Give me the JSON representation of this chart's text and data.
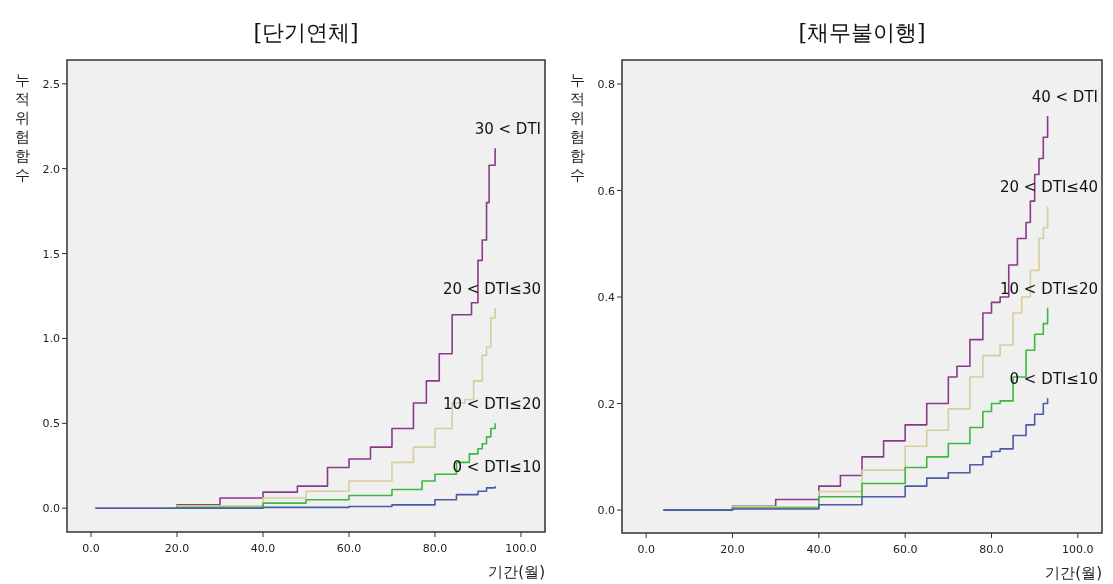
{
  "chart_data": [
    {
      "type": "step",
      "title": "[단기연체]",
      "xlabel": "기간(월)",
      "ylabel": "누적위험함수",
      "xlim": [
        -5.6,
        105.6
      ],
      "ylim": [
        -0.14,
        2.64
      ],
      "xticks": [
        {
          "value": 0,
          "label": "0.0"
        },
        {
          "value": 20,
          "label": "20.0"
        },
        {
          "value": 40,
          "label": "40.0"
        },
        {
          "value": 60,
          "label": "60.0"
        },
        {
          "value": 80,
          "label": "80.0"
        },
        {
          "value": 100,
          "label": "100.0"
        }
      ],
      "yticks": [
        {
          "value": 0,
          "label": "0.0"
        },
        {
          "value": 0.5,
          "label": "0.5"
        },
        {
          "value": 1,
          "label": "1.0"
        },
        {
          "value": 1.5,
          "label": "1.5"
        },
        {
          "value": 2,
          "label": "2.0"
        },
        {
          "value": 2.5,
          "label": "2.5"
        }
      ],
      "series": [
        {
          "name": "30 < DTI",
          "color": "#8a3a8a",
          "x": [
            1,
            20,
            30,
            40,
            48,
            55,
            60,
            65,
            70,
            75,
            78,
            81,
            84,
            87,
            88.5,
            90,
            91,
            92,
            92.6,
            94,
            94
          ],
          "values": [
            0,
            0.02,
            0.06,
            0.095,
            0.13,
            0.24,
            0.29,
            0.36,
            0.47,
            0.62,
            0.75,
            0.91,
            1.14,
            1.14,
            1.21,
            1.46,
            1.58,
            1.8,
            2.02,
            2.02,
            2.12
          ]
        },
        {
          "name": "20 < DTI≤30",
          "color": "#d6cd9c",
          "x": [
            1,
            20,
            40,
            50,
            60,
            70,
            75,
            80,
            84,
            87,
            89,
            91,
            92,
            93,
            94,
            94
          ],
          "values": [
            0,
            0.015,
            0.06,
            0.1,
            0.16,
            0.27,
            0.36,
            0.47,
            0.62,
            0.64,
            0.75,
            0.9,
            0.95,
            1.12,
            1.13,
            1.18
          ]
        },
        {
          "name": "10 < DTI≤20",
          "color": "#3cb83c",
          "x": [
            18,
            20,
            40,
            50,
            60,
            70,
            77,
            80,
            85,
            88,
            90,
            91,
            92,
            93,
            94
          ],
          "values": [
            0,
            0.005,
            0.03,
            0.05,
            0.075,
            0.11,
            0.16,
            0.2,
            0.27,
            0.32,
            0.35,
            0.38,
            0.42,
            0.47,
            0.5
          ]
        },
        {
          "name": "0 < DTI≤10",
          "color": "#4a5aa8",
          "x": [
            1,
            40,
            60,
            70,
            80,
            85,
            88,
            90,
            92,
            94
          ],
          "values": [
            0,
            0.005,
            0.01,
            0.02,
            0.05,
            0.08,
            0.08,
            0.1,
            0.12,
            0.13
          ]
        }
      ]
    },
    {
      "type": "step",
      "title": "[채무불이행]",
      "xlabel": "기간(월)",
      "ylabel": "누적위험함수",
      "xlim": [
        -5.6,
        105.6
      ],
      "ylim": [
        -0.043,
        0.845
      ],
      "xticks": [
        {
          "value": 0,
          "label": "0.0"
        },
        {
          "value": 20,
          "label": "20.0"
        },
        {
          "value": 40,
          "label": "40.0"
        },
        {
          "value": 60,
          "label": "60.0"
        },
        {
          "value": 80,
          "label": "80.0"
        },
        {
          "value": 100,
          "label": "100.0"
        }
      ],
      "yticks": [
        {
          "value": 0,
          "label": "0.0"
        },
        {
          "value": 0.2,
          "label": "0.2"
        },
        {
          "value": 0.4,
          "label": "0.4"
        },
        {
          "value": 0.6,
          "label": "0.6"
        },
        {
          "value": 0.8,
          "label": "0.8"
        }
      ],
      "series": [
        {
          "name": "40 < DTI",
          "color": "#8a3a8a",
          "x": [
            4,
            20,
            30,
            40,
            45,
            50,
            55,
            60,
            65,
            70,
            72,
            75,
            78,
            80,
            82,
            84,
            86,
            88,
            89,
            90,
            91,
            92,
            93
          ],
          "values": [
            0,
            0.007,
            0.02,
            0.045,
            0.065,
            0.1,
            0.13,
            0.16,
            0.2,
            0.25,
            0.27,
            0.32,
            0.37,
            0.39,
            0.4,
            0.46,
            0.51,
            0.54,
            0.58,
            0.63,
            0.66,
            0.7,
            0.74
          ]
        },
        {
          "name": "20 < DTI≤40",
          "color": "#d6cd9c",
          "x": [
            4,
            20,
            40,
            50,
            60,
            65,
            70,
            75,
            78,
            82,
            85,
            87,
            89,
            91,
            92,
            93
          ],
          "values": [
            0,
            0.006,
            0.035,
            0.075,
            0.12,
            0.15,
            0.19,
            0.25,
            0.29,
            0.31,
            0.37,
            0.4,
            0.45,
            0.51,
            0.53,
            0.57
          ]
        },
        {
          "name": "10 < DTI≤20",
          "color": "#3cb83c",
          "x": [
            4,
            20,
            40,
            50,
            60,
            65,
            70,
            75,
            78,
            80,
            82,
            85,
            88,
            90,
            92,
            93
          ],
          "values": [
            0,
            0.004,
            0.025,
            0.05,
            0.08,
            0.1,
            0.125,
            0.155,
            0.185,
            0.2,
            0.205,
            0.25,
            0.3,
            0.33,
            0.35,
            0.38
          ]
        },
        {
          "name": "0 < DTI≤10",
          "color": "#4a5aa8",
          "x": [
            4,
            20,
            40,
            50,
            60,
            65,
            70,
            75,
            78,
            80,
            82,
            85,
            88,
            90,
            92,
            93
          ],
          "values": [
            0,
            0.002,
            0.01,
            0.025,
            0.045,
            0.06,
            0.07,
            0.085,
            0.1,
            0.11,
            0.115,
            0.14,
            0.16,
            0.18,
            0.2,
            0.21
          ]
        }
      ]
    }
  ]
}
